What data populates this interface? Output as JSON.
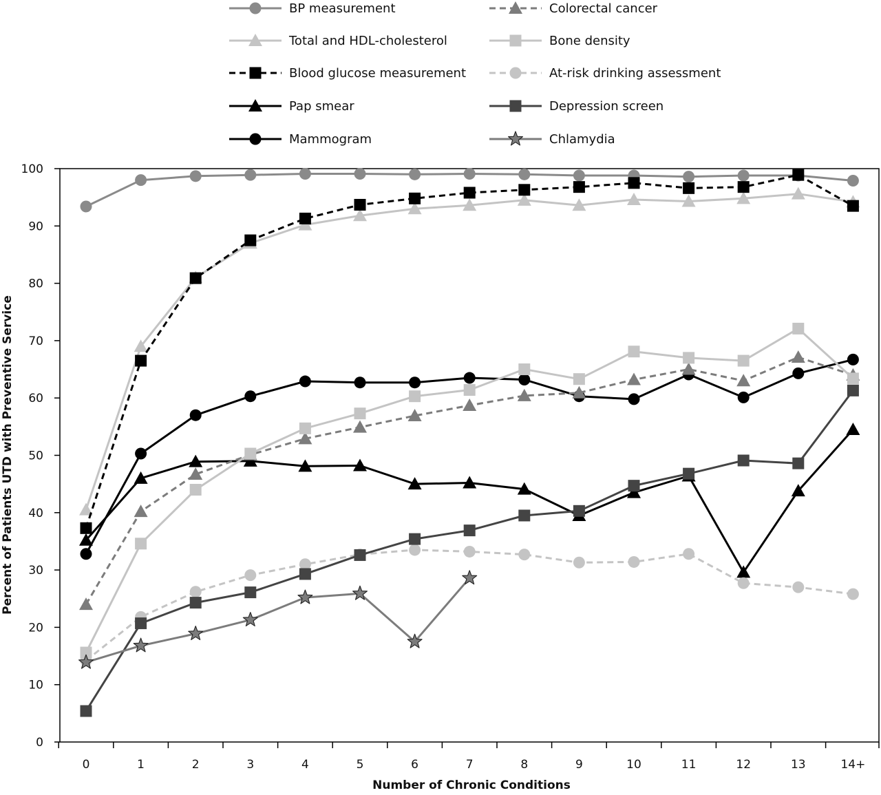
{
  "chart_data": {
    "type": "line",
    "title": "",
    "xlabel": "Number of Chronic Conditions",
    "ylabel": "Percent of Patients UTD with Preventive Service",
    "categories": [
      "0",
      "1",
      "2",
      "3",
      "4",
      "5",
      "6",
      "7",
      "8",
      "9",
      "10",
      "11",
      "12",
      "13",
      "14+"
    ],
    "ylim": [
      0,
      100
    ],
    "yticks": [
      0,
      10,
      20,
      30,
      40,
      50,
      60,
      70,
      80,
      90,
      100
    ],
    "grid": false,
    "legend_position": "top",
    "series": [
      {
        "name": "BP measurement",
        "color": "#8a8a8a",
        "dash": "solid",
        "marker": "circle",
        "values": [
          93.4,
          98,
          98.7,
          98.9,
          99.1,
          99.1,
          99,
          99.1,
          99,
          98.8,
          98.8,
          98.6,
          98.8,
          98.8,
          97.9
        ]
      },
      {
        "name": "Total and HDL-cholesterol",
        "color": "#c4c4c4",
        "dash": "solid",
        "marker": "triangle",
        "values": [
          40.5,
          69,
          81,
          87,
          90.2,
          91.8,
          93,
          93.6,
          94.5,
          93.6,
          94.6,
          94.3,
          94.8,
          95.6,
          94.2
        ]
      },
      {
        "name": "Blood glucose measurement",
        "color": "#000000",
        "dash": "dashed",
        "marker": "square",
        "values": [
          37.3,
          66.5,
          80.9,
          87.5,
          91.3,
          93.7,
          94.8,
          95.8,
          96.3,
          96.8,
          97.5,
          96.6,
          96.8,
          98.9,
          93.5
        ]
      },
      {
        "name": "Pap smear",
        "color": "#000000",
        "dash": "solid",
        "marker": "triangle",
        "values": [
          35.2,
          46,
          48.9,
          49,
          48.1,
          48.2,
          45,
          45.2,
          44.1,
          39.5,
          43.5,
          46.4,
          29.6,
          43.8,
          54.5
        ]
      },
      {
        "name": "Mammogram",
        "color": "#000000",
        "dash": "solid",
        "marker": "circle",
        "values": [
          32.8,
          50.3,
          57,
          60.3,
          62.9,
          62.7,
          62.7,
          63.5,
          63.2,
          60.3,
          59.8,
          64.1,
          60.1,
          64.3,
          66.7
        ]
      },
      {
        "name": "Colorectal cancer",
        "color": "#7c7c7c",
        "dash": "dashed",
        "marker": "triangle",
        "values": [
          24,
          40.2,
          46.7,
          50.1,
          52.9,
          54.9,
          56.9,
          58.7,
          60.4,
          60.9,
          63.2,
          65,
          63,
          67.1,
          64
        ]
      },
      {
        "name": "Bone density",
        "color": "#c4c4c4",
        "dash": "solid",
        "marker": "square",
        "values": [
          15.6,
          34.6,
          44,
          50.3,
          54.7,
          57.3,
          60.3,
          61.4,
          65,
          63.3,
          68.1,
          67,
          66.5,
          72.1,
          63.4
        ]
      },
      {
        "name": "At-risk drinking assessment",
        "color": "#c4c4c4",
        "dash": "dashed",
        "marker": "circle",
        "values": [
          14.2,
          21.8,
          26.2,
          29.1,
          31,
          32.7,
          33.5,
          33.2,
          32.7,
          31.3,
          31.4,
          32.8,
          27.7,
          27,
          25.8
        ]
      },
      {
        "name": "Depression screen",
        "color": "#444444",
        "dash": "solid",
        "marker": "square",
        "values": [
          5.4,
          20.7,
          24.3,
          26.1,
          29.3,
          32.6,
          35.4,
          36.9,
          39.5,
          40.3,
          44.7,
          46.8,
          49.1,
          48.6,
          61.3
        ]
      },
      {
        "name": "Chlamydia",
        "color": "#7c7c7c",
        "dash": "solid",
        "marker": "star",
        "values": [
          13.9,
          16.8,
          18.9,
          21.3,
          25.2,
          25.9,
          17.5,
          28.6,
          null,
          null,
          null,
          null,
          null,
          null,
          null
        ]
      }
    ]
  }
}
